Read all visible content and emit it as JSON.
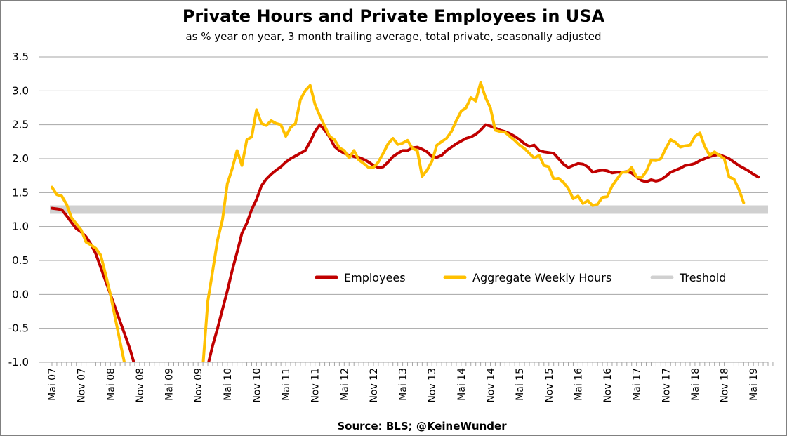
{
  "chart_data": {
    "type": "line",
    "title": "Private Hours and Private Employees in USA",
    "subtitle": "as % year on year, 3 month trailing average, total private, seasonally adjusted",
    "source": "Source: BLS;  @KeineWunder",
    "xlabel": "",
    "ylabel": "",
    "ylim": [
      -1.0,
      3.5
    ],
    "y_ticks": [
      "3.5",
      "3.0",
      "2.5",
      "2.0",
      "1.5",
      "1.0",
      "0.5",
      "0.0",
      "-0.5",
      "-1.0"
    ],
    "x_ticks": [
      "Mai 07",
      "Nov 07",
      "Mai 08",
      "Nov 08",
      "Mai 09",
      "Nov 09",
      "Mai 10",
      "Nov 10",
      "Mai 11",
      "Nov 11",
      "Mai 12",
      "Nov 12",
      "Mai 13",
      "Nov 13",
      "Mai 14",
      "Nov 14",
      "Mai 15",
      "Nov 15",
      "Mai 16",
      "Nov 16",
      "Mai 17",
      "Nov 17",
      "Mai 18",
      "Nov 18",
      "Mai 19"
    ],
    "x_range": [
      "2007-05",
      "2019-08"
    ],
    "grid": true,
    "legend_position": "middle-right",
    "threshold": {
      "name": "Treshold",
      "value": 1.25,
      "color": "#d0d0d0"
    },
    "series": [
      {
        "name": "Employees",
        "color": "#c00000",
        "points": [
          [
            "2007-05",
            1.27
          ],
          [
            "2007-06",
            1.26
          ],
          [
            "2007-07",
            1.25
          ],
          [
            "2007-08",
            1.16
          ],
          [
            "2007-09",
            1.06
          ],
          [
            "2007-10",
            0.97
          ],
          [
            "2007-11",
            0.92
          ],
          [
            "2007-12",
            0.85
          ],
          [
            "2008-01",
            0.74
          ],
          [
            "2008-02",
            0.6
          ],
          [
            "2008-03",
            0.4
          ],
          [
            "2008-04",
            0.2
          ],
          [
            "2008-05",
            0.0
          ],
          [
            "2008-06",
            -0.2
          ],
          [
            "2008-07",
            -0.4
          ],
          [
            "2008-08",
            -0.6
          ],
          [
            "2008-09",
            -0.8
          ],
          [
            "2008-10",
            -1.05
          ],
          [
            "2009-11",
            -1.05
          ],
          [
            "2010-01",
            -1.05
          ],
          [
            "2010-02",
            -0.75
          ],
          [
            "2010-03",
            -0.5
          ],
          [
            "2010-04",
            -0.22
          ],
          [
            "2010-05",
            0.05
          ],
          [
            "2010-06",
            0.35
          ],
          [
            "2010-07",
            0.62
          ],
          [
            "2010-08",
            0.9
          ],
          [
            "2010-09",
            1.05
          ],
          [
            "2010-10",
            1.25
          ],
          [
            "2010-11",
            1.4
          ],
          [
            "2010-12",
            1.6
          ],
          [
            "2011-01",
            1.7
          ],
          [
            "2011-02",
            1.77
          ],
          [
            "2011-03",
            1.83
          ],
          [
            "2011-04",
            1.88
          ],
          [
            "2011-05",
            1.95
          ],
          [
            "2011-06",
            2.0
          ],
          [
            "2011-07",
            2.04
          ],
          [
            "2011-08",
            2.08
          ],
          [
            "2011-09",
            2.12
          ],
          [
            "2011-10",
            2.25
          ],
          [
            "2011-11",
            2.4
          ],
          [
            "2011-12",
            2.5
          ],
          [
            "2012-01",
            2.42
          ],
          [
            "2012-02",
            2.32
          ],
          [
            "2012-03",
            2.18
          ],
          [
            "2012-04",
            2.12
          ],
          [
            "2012-05",
            2.08
          ],
          [
            "2012-06",
            2.05
          ],
          [
            "2012-07",
            2.03
          ],
          [
            "2012-08",
            2.02
          ],
          [
            "2012-09",
            1.99
          ],
          [
            "2012-10",
            1.95
          ],
          [
            "2012-11",
            1.9
          ],
          [
            "2012-12",
            1.87
          ],
          [
            "2013-01",
            1.88
          ],
          [
            "2013-02",
            1.95
          ],
          [
            "2013-03",
            2.03
          ],
          [
            "2013-04",
            2.08
          ],
          [
            "2013-05",
            2.12
          ],
          [
            "2013-06",
            2.12
          ],
          [
            "2013-07",
            2.16
          ],
          [
            "2013-08",
            2.17
          ],
          [
            "2013-09",
            2.14
          ],
          [
            "2013-10",
            2.1
          ],
          [
            "2013-11",
            2.03
          ],
          [
            "2013-12",
            2.02
          ],
          [
            "2014-01",
            2.05
          ],
          [
            "2014-02",
            2.12
          ],
          [
            "2014-03",
            2.17
          ],
          [
            "2014-04",
            2.22
          ],
          [
            "2014-05",
            2.26
          ],
          [
            "2014-06",
            2.3
          ],
          [
            "2014-07",
            2.32
          ],
          [
            "2014-08",
            2.36
          ],
          [
            "2014-09",
            2.42
          ],
          [
            "2014-10",
            2.5
          ],
          [
            "2014-11",
            2.48
          ],
          [
            "2014-12",
            2.45
          ],
          [
            "2015-01",
            2.42
          ],
          [
            "2015-02",
            2.4
          ],
          [
            "2015-03",
            2.37
          ],
          [
            "2015-04",
            2.33
          ],
          [
            "2015-05",
            2.28
          ],
          [
            "2015-06",
            2.22
          ],
          [
            "2015-07",
            2.18
          ],
          [
            "2015-08",
            2.2
          ],
          [
            "2015-09",
            2.12
          ],
          [
            "2015-10",
            2.1
          ],
          [
            "2015-11",
            2.09
          ],
          [
            "2015-12",
            2.08
          ],
          [
            "2016-01",
            2.0
          ],
          [
            "2016-02",
            1.92
          ],
          [
            "2016-03",
            1.87
          ],
          [
            "2016-04",
            1.9
          ],
          [
            "2016-05",
            1.93
          ],
          [
            "2016-06",
            1.92
          ],
          [
            "2016-07",
            1.88
          ],
          [
            "2016-08",
            1.8
          ],
          [
            "2016-09",
            1.82
          ],
          [
            "2016-10",
            1.83
          ],
          [
            "2016-11",
            1.82
          ],
          [
            "2016-12",
            1.79
          ],
          [
            "2017-01",
            1.8
          ],
          [
            "2017-02",
            1.8
          ],
          [
            "2017-03",
            1.81
          ],
          [
            "2017-04",
            1.79
          ],
          [
            "2017-05",
            1.73
          ],
          [
            "2017-06",
            1.68
          ],
          [
            "2017-07",
            1.66
          ],
          [
            "2017-08",
            1.69
          ],
          [
            "2017-09",
            1.67
          ],
          [
            "2017-10",
            1.69
          ],
          [
            "2017-11",
            1.74
          ],
          [
            "2017-12",
            1.8
          ],
          [
            "2018-01",
            1.83
          ],
          [
            "2018-02",
            1.86
          ],
          [
            "2018-03",
            1.9
          ],
          [
            "2018-04",
            1.91
          ],
          [
            "2018-05",
            1.93
          ],
          [
            "2018-06",
            1.97
          ],
          [
            "2018-07",
            2.0
          ],
          [
            "2018-08",
            2.03
          ],
          [
            "2018-09",
            2.05
          ],
          [
            "2018-10",
            2.06
          ],
          [
            "2018-11",
            2.03
          ],
          [
            "2018-12",
            2.0
          ],
          [
            "2019-01",
            1.95
          ],
          [
            "2019-02",
            1.9
          ],
          [
            "2019-03",
            1.86
          ],
          [
            "2019-04",
            1.82
          ],
          [
            "2019-05",
            1.77
          ],
          [
            "2019-06",
            1.73
          ]
        ]
      },
      {
        "name": "Aggregate Weekly Hours",
        "color": "#ffc000",
        "points": [
          [
            "2007-05",
            1.58
          ],
          [
            "2007-06",
            1.47
          ],
          [
            "2007-07",
            1.45
          ],
          [
            "2007-08",
            1.33
          ],
          [
            "2007-09",
            1.13
          ],
          [
            "2007-10",
            1.04
          ],
          [
            "2007-11",
            0.95
          ],
          [
            "2007-12",
            0.77
          ],
          [
            "2008-01",
            0.73
          ],
          [
            "2008-02",
            0.68
          ],
          [
            "2008-03",
            0.58
          ],
          [
            "2008-04",
            0.3
          ],
          [
            "2008-05",
            0.0
          ],
          [
            "2008-06",
            -0.35
          ],
          [
            "2008-07",
            -0.7
          ],
          [
            "2008-08",
            -1.05
          ],
          [
            "2009-11",
            -1.05
          ],
          [
            "2009-12",
            -1.05
          ],
          [
            "2010-01",
            -0.1
          ],
          [
            "2010-02",
            0.35
          ],
          [
            "2010-03",
            0.8
          ],
          [
            "2010-04",
            1.1
          ],
          [
            "2010-05",
            1.63
          ],
          [
            "2010-06",
            1.85
          ],
          [
            "2010-07",
            2.12
          ],
          [
            "2010-08",
            1.9
          ],
          [
            "2010-09",
            2.28
          ],
          [
            "2010-10",
            2.32
          ],
          [
            "2010-11",
            2.72
          ],
          [
            "2010-12",
            2.52
          ],
          [
            "2011-01",
            2.49
          ],
          [
            "2011-02",
            2.56
          ],
          [
            "2011-03",
            2.52
          ],
          [
            "2011-04",
            2.5
          ],
          [
            "2011-05",
            2.33
          ],
          [
            "2011-06",
            2.46
          ],
          [
            "2011-07",
            2.52
          ],
          [
            "2011-08",
            2.87
          ],
          [
            "2011-09",
            3.0
          ],
          [
            "2011-10",
            3.08
          ],
          [
            "2011-11",
            2.8
          ],
          [
            "2011-12",
            2.63
          ],
          [
            "2012-01",
            2.48
          ],
          [
            "2012-02",
            2.33
          ],
          [
            "2012-03",
            2.28
          ],
          [
            "2012-04",
            2.16
          ],
          [
            "2012-05",
            2.12
          ],
          [
            "2012-06",
            2.01
          ],
          [
            "2012-07",
            2.12
          ],
          [
            "2012-08",
            1.98
          ],
          [
            "2012-09",
            1.93
          ],
          [
            "2012-10",
            1.87
          ],
          [
            "2012-11",
            1.87
          ],
          [
            "2012-12",
            1.95
          ],
          [
            "2013-01",
            2.08
          ],
          [
            "2013-02",
            2.22
          ],
          [
            "2013-03",
            2.3
          ],
          [
            "2013-04",
            2.21
          ],
          [
            "2013-05",
            2.23
          ],
          [
            "2013-06",
            2.27
          ],
          [
            "2013-07",
            2.15
          ],
          [
            "2013-08",
            2.12
          ],
          [
            "2013-09",
            1.74
          ],
          [
            "2013-10",
            1.83
          ],
          [
            "2013-11",
            1.96
          ],
          [
            "2013-12",
            2.2
          ],
          [
            "2014-01",
            2.25
          ],
          [
            "2014-02",
            2.3
          ],
          [
            "2014-03",
            2.4
          ],
          [
            "2014-04",
            2.56
          ],
          [
            "2014-05",
            2.7
          ],
          [
            "2014-06",
            2.75
          ],
          [
            "2014-07",
            2.9
          ],
          [
            "2014-08",
            2.85
          ],
          [
            "2014-09",
            3.12
          ],
          [
            "2014-10",
            2.9
          ],
          [
            "2014-11",
            2.75
          ],
          [
            "2014-12",
            2.42
          ],
          [
            "2015-01",
            2.4
          ],
          [
            "2015-02",
            2.39
          ],
          [
            "2015-03",
            2.33
          ],
          [
            "2015-04",
            2.27
          ],
          [
            "2015-05",
            2.2
          ],
          [
            "2015-06",
            2.15
          ],
          [
            "2015-07",
            2.08
          ],
          [
            "2015-08",
            2.01
          ],
          [
            "2015-09",
            2.05
          ],
          [
            "2015-10",
            1.9
          ],
          [
            "2015-11",
            1.88
          ],
          [
            "2015-12",
            1.7
          ],
          [
            "2016-01",
            1.71
          ],
          [
            "2016-02",
            1.65
          ],
          [
            "2016-03",
            1.56
          ],
          [
            "2016-04",
            1.41
          ],
          [
            "2016-05",
            1.45
          ],
          [
            "2016-06",
            1.34
          ],
          [
            "2016-07",
            1.38
          ],
          [
            "2016-08",
            1.31
          ],
          [
            "2016-09",
            1.33
          ],
          [
            "2016-10",
            1.43
          ],
          [
            "2016-11",
            1.44
          ],
          [
            "2016-12",
            1.6
          ],
          [
            "2017-01",
            1.7
          ],
          [
            "2017-02",
            1.8
          ],
          [
            "2017-03",
            1.8
          ],
          [
            "2017-04",
            1.87
          ],
          [
            "2017-05",
            1.73
          ],
          [
            "2017-06",
            1.72
          ],
          [
            "2017-07",
            1.81
          ],
          [
            "2017-08",
            1.98
          ],
          [
            "2017-09",
            1.97
          ],
          [
            "2017-10",
            2.0
          ],
          [
            "2017-11",
            2.15
          ],
          [
            "2017-12",
            2.28
          ],
          [
            "2018-01",
            2.24
          ],
          [
            "2018-02",
            2.17
          ],
          [
            "2018-03",
            2.19
          ],
          [
            "2018-04",
            2.2
          ],
          [
            "2018-05",
            2.33
          ],
          [
            "2018-06",
            2.38
          ],
          [
            "2018-07",
            2.18
          ],
          [
            "2018-08",
            2.05
          ],
          [
            "2018-09",
            2.1
          ],
          [
            "2018-10",
            2.05
          ],
          [
            "2018-11",
            2.0
          ],
          [
            "2018-12",
            1.73
          ],
          [
            "2019-01",
            1.7
          ],
          [
            "2019-02",
            1.55
          ],
          [
            "2019-03",
            1.35
          ]
        ]
      }
    ]
  }
}
